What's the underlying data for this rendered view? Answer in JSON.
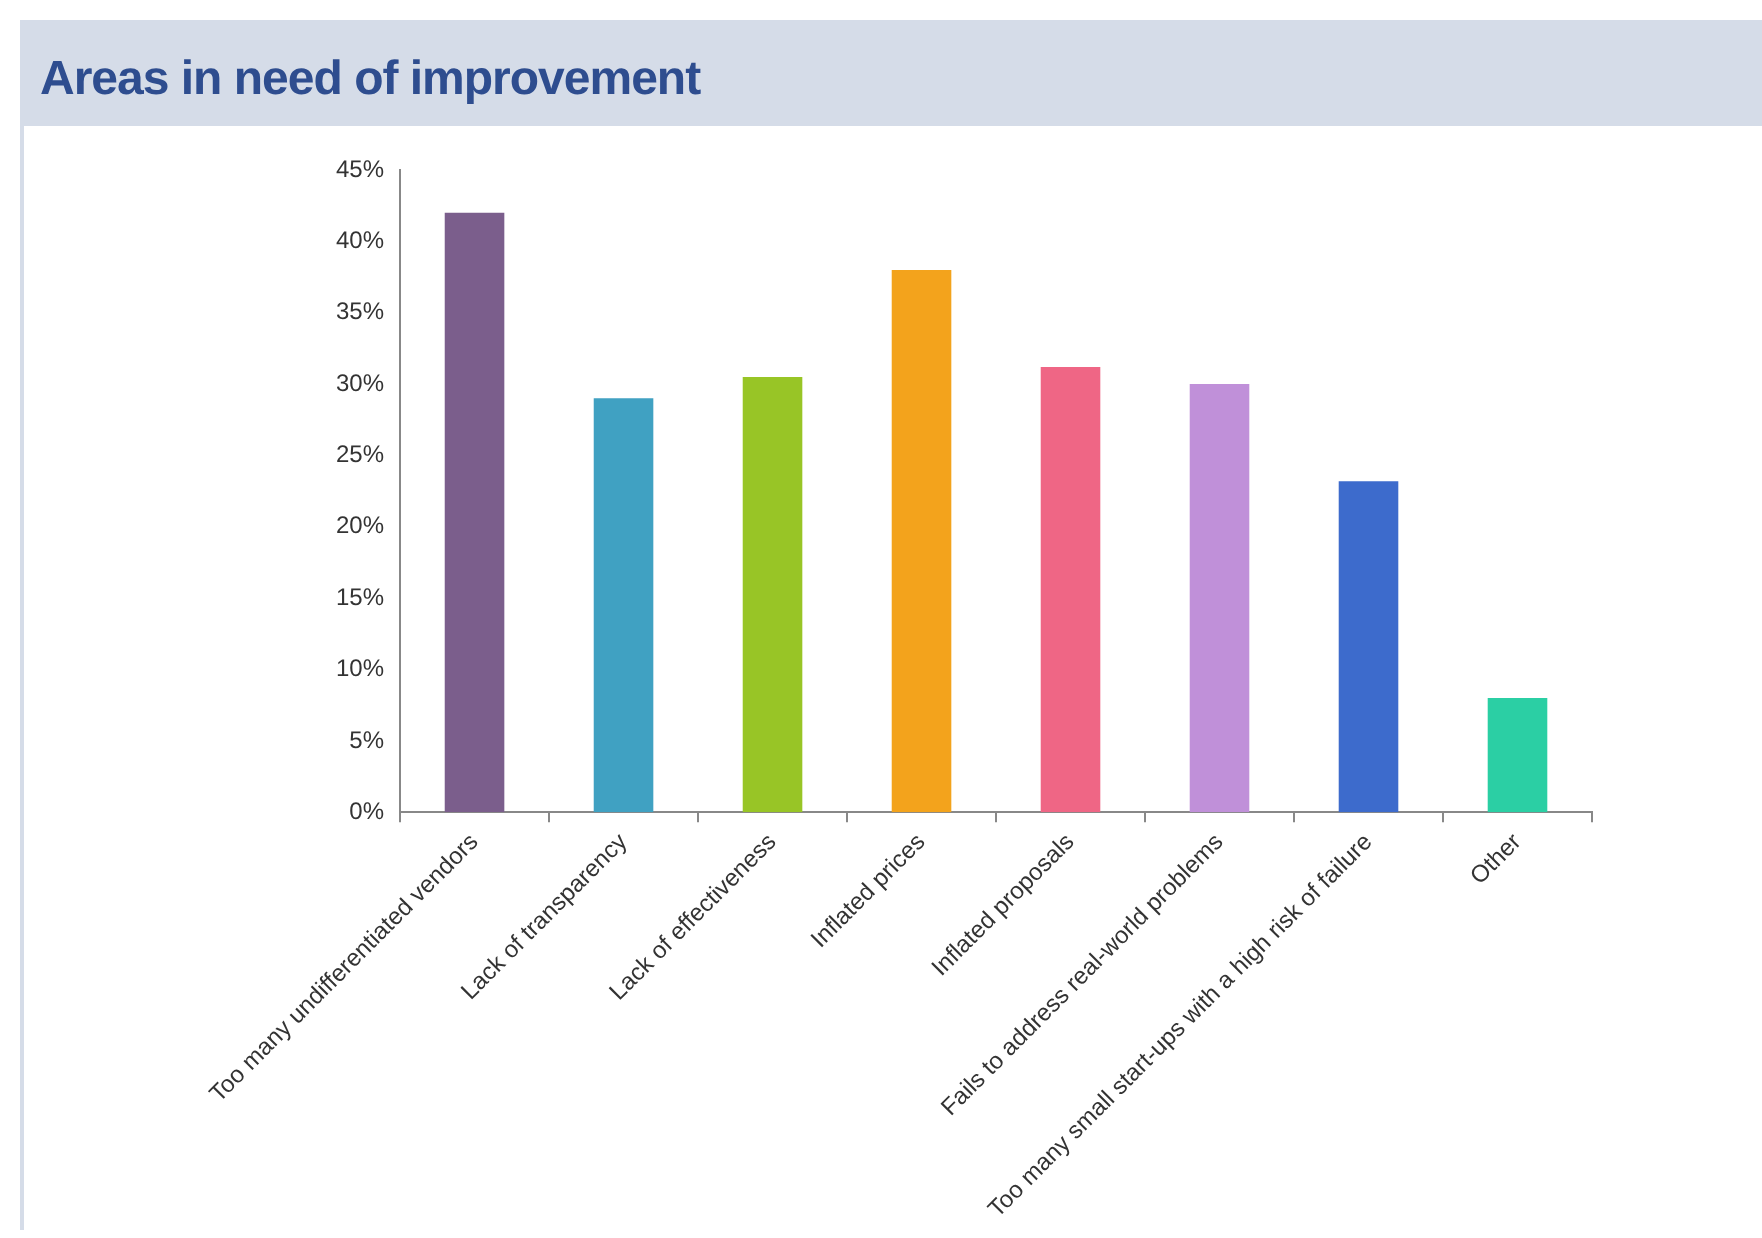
{
  "chart_data": {
    "type": "bar",
    "title": "Areas in need of improvement",
    "categories": [
      "Too many undifferentiated vendors",
      "Lack of transparency",
      "Lack of effectiveness",
      "Inflated prices",
      "Inflated proposals",
      "Fails to address real-world problems",
      "Too many small start-ups with a high risk of failure",
      "Other"
    ],
    "values": [
      42,
      29,
      30.5,
      38,
      31.2,
      30,
      23.2,
      8
    ],
    "colors": [
      "#7b5e8c",
      "#40a1c2",
      "#98c526",
      "#f3a31c",
      "#ef6685",
      "#c090d9",
      "#3d6bcc",
      "#2bcfa4"
    ],
    "ylim": [
      0,
      45
    ],
    "yticks": [
      {
        "value": 0,
        "label": "0%"
      },
      {
        "value": 5,
        "label": "5%"
      },
      {
        "value": 10,
        "label": "10%"
      },
      {
        "value": 15,
        "label": "15%"
      },
      {
        "value": 20,
        "label": "20%"
      },
      {
        "value": 25,
        "label": "25%"
      },
      {
        "value": 30,
        "label": "30%"
      },
      {
        "value": 35,
        "label": "35%"
      },
      {
        "value": 40,
        "label": "40%"
      },
      {
        "value": 45,
        "label": "45%"
      }
    ],
    "grid": false,
    "legend": false
  }
}
